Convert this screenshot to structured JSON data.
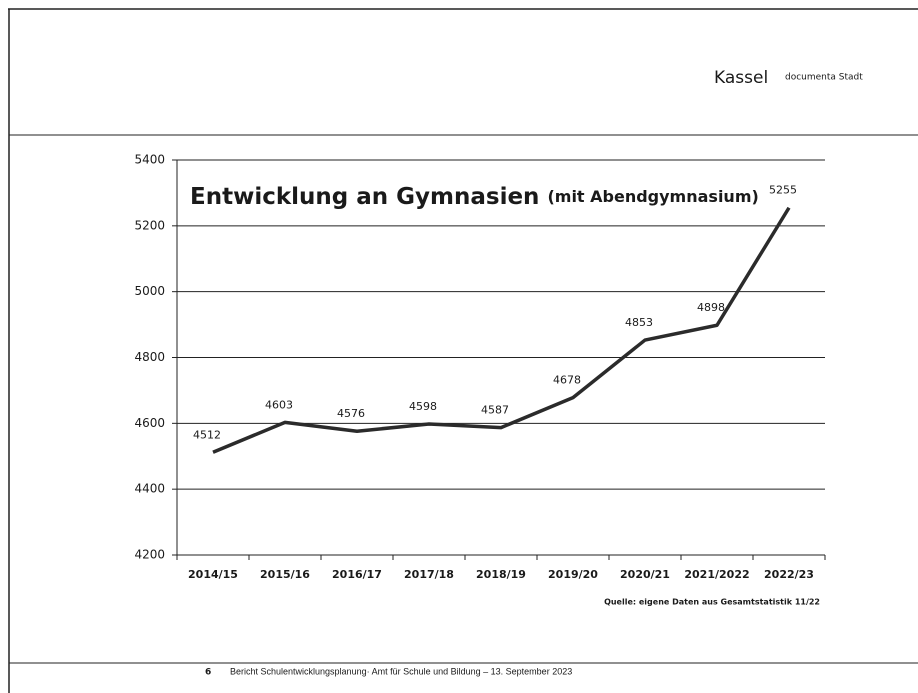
{
  "header": {
    "brand": "Kassel",
    "tagline": "documenta Stadt"
  },
  "footer": {
    "page": "6",
    "text": "Bericht Schulentwicklungsplanung· Amt für Schule und Bildung – 13. September 2023"
  },
  "chart_data": {
    "type": "line",
    "title": "Entwicklung an Gymnasien",
    "subtitle": "(mit Abendgymnasium)",
    "source": "Quelle: eigene Daten aus Gesamtstatistik 11/22",
    "categories": [
      "2014/15",
      "2015/16",
      "2016/17",
      "2017/18",
      "2018/19",
      "2019/20",
      "2020/21",
      "2021/2022",
      "2022/23"
    ],
    "values": [
      4512,
      4603,
      4576,
      4598,
      4587,
      4678,
      4853,
      4898,
      5255
    ],
    "color": "#2b2b2b",
    "ylim": [
      4200,
      5400
    ],
    "yticks": [
      4200,
      4400,
      4600,
      4800,
      5000,
      5200,
      5400
    ],
    "grid": true
  }
}
